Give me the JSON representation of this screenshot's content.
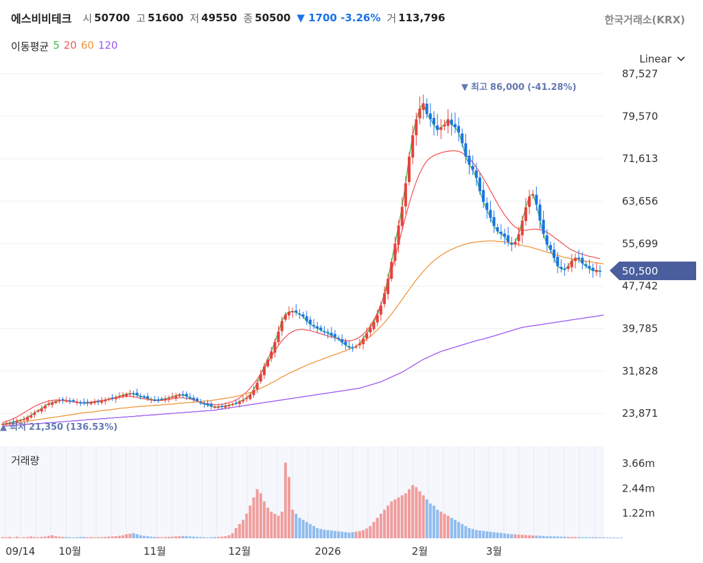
{
  "header": {
    "name": "에스비비테크",
    "open_label": "시",
    "open": "50700",
    "high_label": "고",
    "high": "51600",
    "low_label": "저",
    "low": "49550",
    "close_label": "종",
    "close": "50500",
    "change_arrow": "▼",
    "change": "1700",
    "change_pct": "-3.26%",
    "volume_label": "거",
    "volume": "113,796"
  },
  "exchange": "한국거래소(KRX)",
  "moving_average": {
    "label": "이동평균",
    "periods": [
      {
        "label": "5",
        "color": "#3cb94a"
      },
      {
        "label": "20",
        "color": "#f05a5a"
      },
      {
        "label": "60",
        "color": "#f0963c"
      },
      {
        "label": "120",
        "color": "#9b59f0"
      }
    ]
  },
  "scale_menu": {
    "label": "Linear",
    "icon": "chevron-down-icon"
  },
  "colors": {
    "up": "#e8413c",
    "down": "#1a73e8",
    "vol_up": "#f19c9c",
    "vol_down": "#8fbcef",
    "badge": "#4a5d9c",
    "annot": "#6377b0"
  },
  "chart_data": {
    "type": "candlestick",
    "y_axis_ticks": [
      "87,527",
      "79,570",
      "71,613",
      "63,656",
      "55,699",
      "47,742",
      "39,785",
      "31,828",
      "23,871"
    ],
    "ylim": [
      19000,
      89000
    ],
    "current_price_badge": "50,500",
    "max_annotation": {
      "arrow": "▼",
      "label": "최고",
      "value": "86,000",
      "pct": "(-41.28%)"
    },
    "min_annotation": {
      "arrow": "▲",
      "label": "최저",
      "value": "21,350",
      "pct": "(136.53%)"
    },
    "x_axis_labels": [
      "09/14",
      "10월",
      "11월",
      "12월",
      "2026",
      "2월",
      "3월"
    ],
    "volume_panel": {
      "title": "거래량",
      "ticks": [
        "3.66m",
        "2.44m",
        "1.22m"
      ],
      "ymax": 4500000
    },
    "price_path": [
      21900,
      22000,
      22100,
      22300,
      22500,
      22600,
      22800,
      23200,
      23500,
      24000,
      24400,
      24800,
      25300,
      25700,
      25900,
      26100,
      26300,
      26400,
      26300,
      26200,
      26100,
      26000,
      25900,
      25800,
      25800,
      25900,
      26000,
      26100,
      26200,
      26400,
      26600,
      26700,
      26900,
      27100,
      27300,
      27500,
      27600,
      27500,
      27300,
      27100,
      26900,
      26700,
      26500,
      26400,
      26400,
      26500,
      26600,
      26800,
      27000,
      27200,
      27400,
      27300,
      27100,
      26800,
      26500,
      26200,
      25900,
      25600,
      25400,
      25200,
      25100,
      25100,
      25200,
      25300,
      25400,
      25600,
      25800,
      26100,
      26400,
      26800,
      27400,
      28300,
      29600,
      31200,
      32700,
      34000,
      35500,
      37300,
      39200,
      41200,
      42400,
      42900,
      43000,
      42800,
      42500,
      42000,
      41200,
      40600,
      40200,
      39800,
      39500,
      39200,
      38900,
      38500,
      38200,
      37800,
      37200,
      36700,
      36300,
      36200,
      36400,
      37000,
      37900,
      38900,
      39900,
      41000,
      42300,
      44100,
      46400,
      49100,
      52300,
      55700,
      59100,
      62600,
      67000,
      72000,
      76000,
      79000,
      81000,
      82000,
      80000,
      79000,
      78000,
      77000,
      77500,
      78000,
      79000,
      78000,
      77500,
      76500,
      74500,
      72000,
      70500,
      69500,
      68000,
      65500,
      63500,
      62000,
      60500,
      59000,
      58000,
      57500,
      57000,
      56000,
      55500,
      56000,
      57500,
      60000,
      62500,
      64500,
      65000,
      63000,
      60000,
      57500,
      55500,
      54500,
      53000,
      51500,
      51000,
      50800,
      51500,
      52500,
      53000,
      52800,
      52000,
      51500,
      51000,
      50600,
      50700,
      50500
    ],
    "ma_series": [
      {
        "name": "5",
        "values": [
          21900,
          22000,
          22100,
          22300,
          22500,
          22600,
          22800,
          23200,
          23500,
          24000,
          24400,
          24800,
          25300,
          25700,
          25900,
          26100,
          26300,
          26400,
          26300,
          26200,
          26100,
          26000,
          25900,
          25800,
          25800,
          25900,
          26000,
          26100,
          26200,
          26400,
          26600,
          26700,
          26900,
          27100,
          27300,
          27500,
          27600,
          27500,
          27300,
          27100,
          26900,
          26700,
          26500,
          26400,
          26400,
          26500,
          26600,
          26800,
          27000,
          27200,
          27400,
          27300,
          27100,
          26800,
          26500,
          26200,
          25900,
          25600,
          25400,
          25200,
          25100,
          25100,
          25200,
          25300,
          25400,
          25600,
          25800,
          26100,
          26400,
          26800,
          27400,
          28300,
          29600,
          31200,
          32700,
          34000,
          35500,
          37300,
          39200,
          41200,
          42400,
          42900,
          43000,
          42800,
          42500,
          42000,
          41200,
          40600,
          40200,
          39800,
          39500,
          39200,
          38900,
          38500,
          38200,
          37800,
          37200,
          36700,
          36300,
          36200,
          36400,
          37000,
          37900,
          38900,
          39900,
          41000,
          42300,
          44100,
          46400,
          49100,
          52300,
          55700,
          59100,
          62600,
          67000,
          72000,
          76000,
          79000,
          81000,
          82000,
          80000,
          79000,
          78000,
          77000,
          77500,
          78000,
          79000,
          78000,
          77500,
          76500,
          74500,
          72000,
          70500,
          69500,
          68000,
          65500,
          63500,
          62000,
          60500,
          59000,
          58000,
          57500,
          57000,
          56000,
          55500,
          56000,
          57500,
          60000,
          62500,
          64500,
          65000,
          63000,
          60000,
          57500,
          55500,
          54500,
          53000,
          51500,
          51000,
          50800,
          51500,
          52500,
          53000,
          52800,
          52000,
          51500,
          51000,
          50600,
          50700,
          50500
        ]
      },
      {
        "name": "20",
        "values": [
          22200,
          22400,
          22600,
          22900,
          23200,
          23600,
          24000,
          24400,
          24800,
          25200,
          25500,
          25800,
          26000,
          26200,
          26300,
          26400,
          26400,
          26300,
          26200,
          26100,
          26100,
          26000,
          25900,
          25900,
          25900,
          26000,
          26100,
          26200,
          26300,
          26400,
          26500,
          26600,
          26800,
          26900,
          27000,
          27100,
          27100,
          27000,
          26900,
          26700,
          26600,
          26500,
          26400,
          26300,
          26300,
          26300,
          26400,
          26500,
          26600,
          26700,
          26800,
          26800,
          26700,
          26600,
          26400,
          26200,
          26000,
          25800,
          25700,
          25600,
          25500,
          25500,
          25600,
          25700,
          25900,
          26100,
          26400,
          26800,
          27300,
          27900,
          28600,
          29400,
          30300,
          31300,
          32300,
          33400,
          34500,
          35600,
          36600,
          37500,
          38200,
          38800,
          39200,
          39500,
          39600,
          39600,
          39500,
          39400,
          39200,
          39000,
          38800,
          38600,
          38400,
          38200,
          38000,
          37800,
          37600,
          37500,
          37500,
          37600,
          37800,
          38200,
          38700,
          39400,
          40300,
          41400,
          42700,
          44300,
          46100,
          48200,
          50500,
          53000,
          55600,
          58200,
          60800,
          63200,
          65400,
          67300,
          68900,
          70200,
          71200,
          71800,
          72200,
          72500,
          72700,
          72900,
          73000,
          73100,
          73100,
          73000,
          72700,
          72300,
          71700,
          70900,
          70000,
          69000,
          67900,
          66800,
          65600,
          64400,
          63200,
          62100,
          61100,
          60200,
          59400,
          58800,
          58400,
          58200,
          58200,
          58300,
          58400,
          58400,
          58300,
          58100,
          57800,
          57400,
          56900,
          56400,
          55900,
          55400,
          54900,
          54500,
          54200,
          53900,
          53700,
          53500,
          53300,
          53200,
          53000,
          52900
        ]
      },
      {
        "name": "60",
        "values": [
          21700,
          21800,
          21900,
          22000,
          22100,
          22200,
          22300,
          22400,
          22500,
          22600,
          22700,
          22800,
          22900,
          23000,
          23100,
          23200,
          23300,
          23400,
          23500,
          23600,
          23700,
          23800,
          23900,
          24000,
          24100,
          24100,
          24200,
          24300,
          24400,
          24500,
          24500,
          24600,
          24700,
          24800,
          24900,
          24900,
          25000,
          25100,
          25100,
          25200,
          25200,
          25300,
          25300,
          25400,
          25400,
          25500,
          25500,
          25600,
          25600,
          25700,
          25800,
          25800,
          25900,
          25900,
          26000,
          26000,
          26100,
          26200,
          26200,
          26300,
          26400,
          26500,
          26600,
          26700,
          26800,
          26900,
          27100,
          27200,
          27400,
          27600,
          27800,
          28000,
          28300,
          28600,
          28900,
          29200,
          29600,
          29900,
          30300,
          30700,
          31000,
          31400,
          31700,
          32000,
          32300,
          32600,
          32900,
          33200,
          33400,
          33700,
          33900,
          34200,
          34400,
          34700,
          34900,
          35100,
          35400,
          35600,
          35900,
          36200,
          36500,
          36900,
          37300,
          37800,
          38300,
          38900,
          39500,
          40200,
          40900,
          41700,
          42500,
          43400,
          44300,
          45200,
          46200,
          47100,
          48000,
          48900,
          49700,
          50500,
          51200,
          51900,
          52500,
          53000,
          53500,
          53900,
          54300,
          54600,
          54900,
          55200,
          55400,
          55600,
          55800,
          55900,
          56000,
          56100,
          56100,
          56200,
          56200,
          56200,
          56100,
          56100,
          56000,
          55900,
          55800,
          55700,
          55500,
          55400,
          55200,
          55100,
          54900,
          54700,
          54500,
          54300,
          54100,
          53900,
          53700,
          53500,
          53300,
          53100,
          53000,
          52800,
          52700,
          52600,
          52500,
          52400,
          52300,
          52200,
          52100,
          52000,
          51900
        ]
      },
      {
        "name": "120",
        "values": [
          21500,
          21500,
          21600,
          21600,
          21700,
          21700,
          21800,
          21800,
          21900,
          21900,
          22000,
          22000,
          22100,
          22100,
          22200,
          22200,
          22300,
          22300,
          22400,
          22400,
          22500,
          22500,
          22600,
          22600,
          22700,
          22700,
          22800,
          22800,
          22900,
          22900,
          23000,
          23000,
          23100,
          23100,
          23200,
          23200,
          23300,
          23300,
          23400,
          23400,
          23500,
          23500,
          23600,
          23600,
          23700,
          23700,
          23800,
          23800,
          23900,
          23900,
          24000,
          24000,
          24100,
          24100,
          24200,
          24200,
          24300,
          24300,
          24400,
          24400,
          24500,
          24600,
          24700,
          24800,
          24900,
          25000,
          25100,
          25200,
          25300,
          25400,
          25500,
          25600,
          25700,
          25800,
          25900,
          26000,
          26100,
          26200,
          26300,
          26400,
          26500,
          26600,
          26700,
          26800,
          26900,
          27000,
          27100,
          27200,
          27300,
          27400,
          27500,
          27600,
          27700,
          27800,
          27900,
          28000,
          28100,
          28200,
          28300,
          28400,
          28500,
          28600,
          28800,
          29000,
          29200,
          29400,
          29600,
          29800,
          30100,
          30400,
          30700,
          31000,
          31300,
          31600,
          32000,
          32400,
          32800,
          33200,
          33600,
          34000,
          34300,
          34600,
          34900,
          35200,
          35500,
          35700,
          35900,
          36100,
          36300,
          36500,
          36700,
          36900,
          37100,
          37300,
          37500,
          37700,
          37800,
          38000,
          38200,
          38400,
          38600,
          38800,
          39000,
          39200,
          39400,
          39600,
          39800,
          40000,
          40100,
          40200,
          40300,
          40400,
          40500,
          40600,
          40700,
          40800,
          40900,
          41000,
          41100,
          41200,
          41300,
          41400,
          41500,
          41600,
          41700,
          41800,
          41900,
          42000,
          42100,
          42200,
          42300
        ]
      }
    ],
    "volume": [
      60000,
      50000,
      70000,
      40000,
      80000,
      30000,
      50000,
      60000,
      90000,
      60000,
      50000,
      70000,
      80000,
      120000,
      150000,
      100000,
      80000,
      70000,
      60000,
      50000,
      40000,
      50000,
      60000,
      70000,
      50000,
      60000,
      40000,
      50000,
      60000,
      70000,
      80000,
      90000,
      100000,
      120000,
      150000,
      200000,
      220000,
      250000,
      200000,
      150000,
      120000,
      100000,
      80000,
      70000,
      60000,
      50000,
      60000,
      70000,
      80000,
      90000,
      100000,
      110000,
      100000,
      90000,
      80000,
      70000,
      60000,
      50000,
      40000,
      50000,
      60000,
      70000,
      80000,
      100000,
      150000,
      250000,
      500000,
      700000,
      900000,
      1200000,
      1600000,
      2000000,
      2400000,
      2200000,
      1800000,
      1500000,
      1300000,
      1200000,
      1100000,
      1300000,
      3700000,
      3000000,
      1400000,
      1200000,
      1000000,
      900000,
      800000,
      700000,
      600000,
      500000,
      450000,
      420000,
      400000,
      380000,
      360000,
      340000,
      320000,
      300000,
      280000,
      300000,
      320000,
      350000,
      400000,
      480000,
      600000,
      800000,
      1000000,
      1200000,
      1400000,
      1600000,
      1800000,
      1900000,
      2000000,
      2100000,
      2200000,
      2400000,
      2600000,
      2500000,
      2300000,
      2100000,
      1900000,
      1700000,
      1600000,
      1400000,
      1300000,
      1200000,
      1100000,
      1000000,
      900000,
      800000,
      700000,
      600000,
      500000,
      450000,
      400000,
      380000,
      360000,
      340000,
      320000,
      300000,
      280000,
      260000,
      240000,
      220000,
      200000,
      190000,
      180000,
      170000,
      160000,
      150000,
      140000,
      130000,
      120000,
      110000,
      100000,
      95000,
      90000,
      85000,
      80000,
      75000,
      70000,
      65000,
      60000,
      58000,
      56000,
      54000,
      52000,
      50000,
      48000,
      46000,
      44000,
      42000,
      40000,
      38000,
      36000,
      34000
    ]
  }
}
